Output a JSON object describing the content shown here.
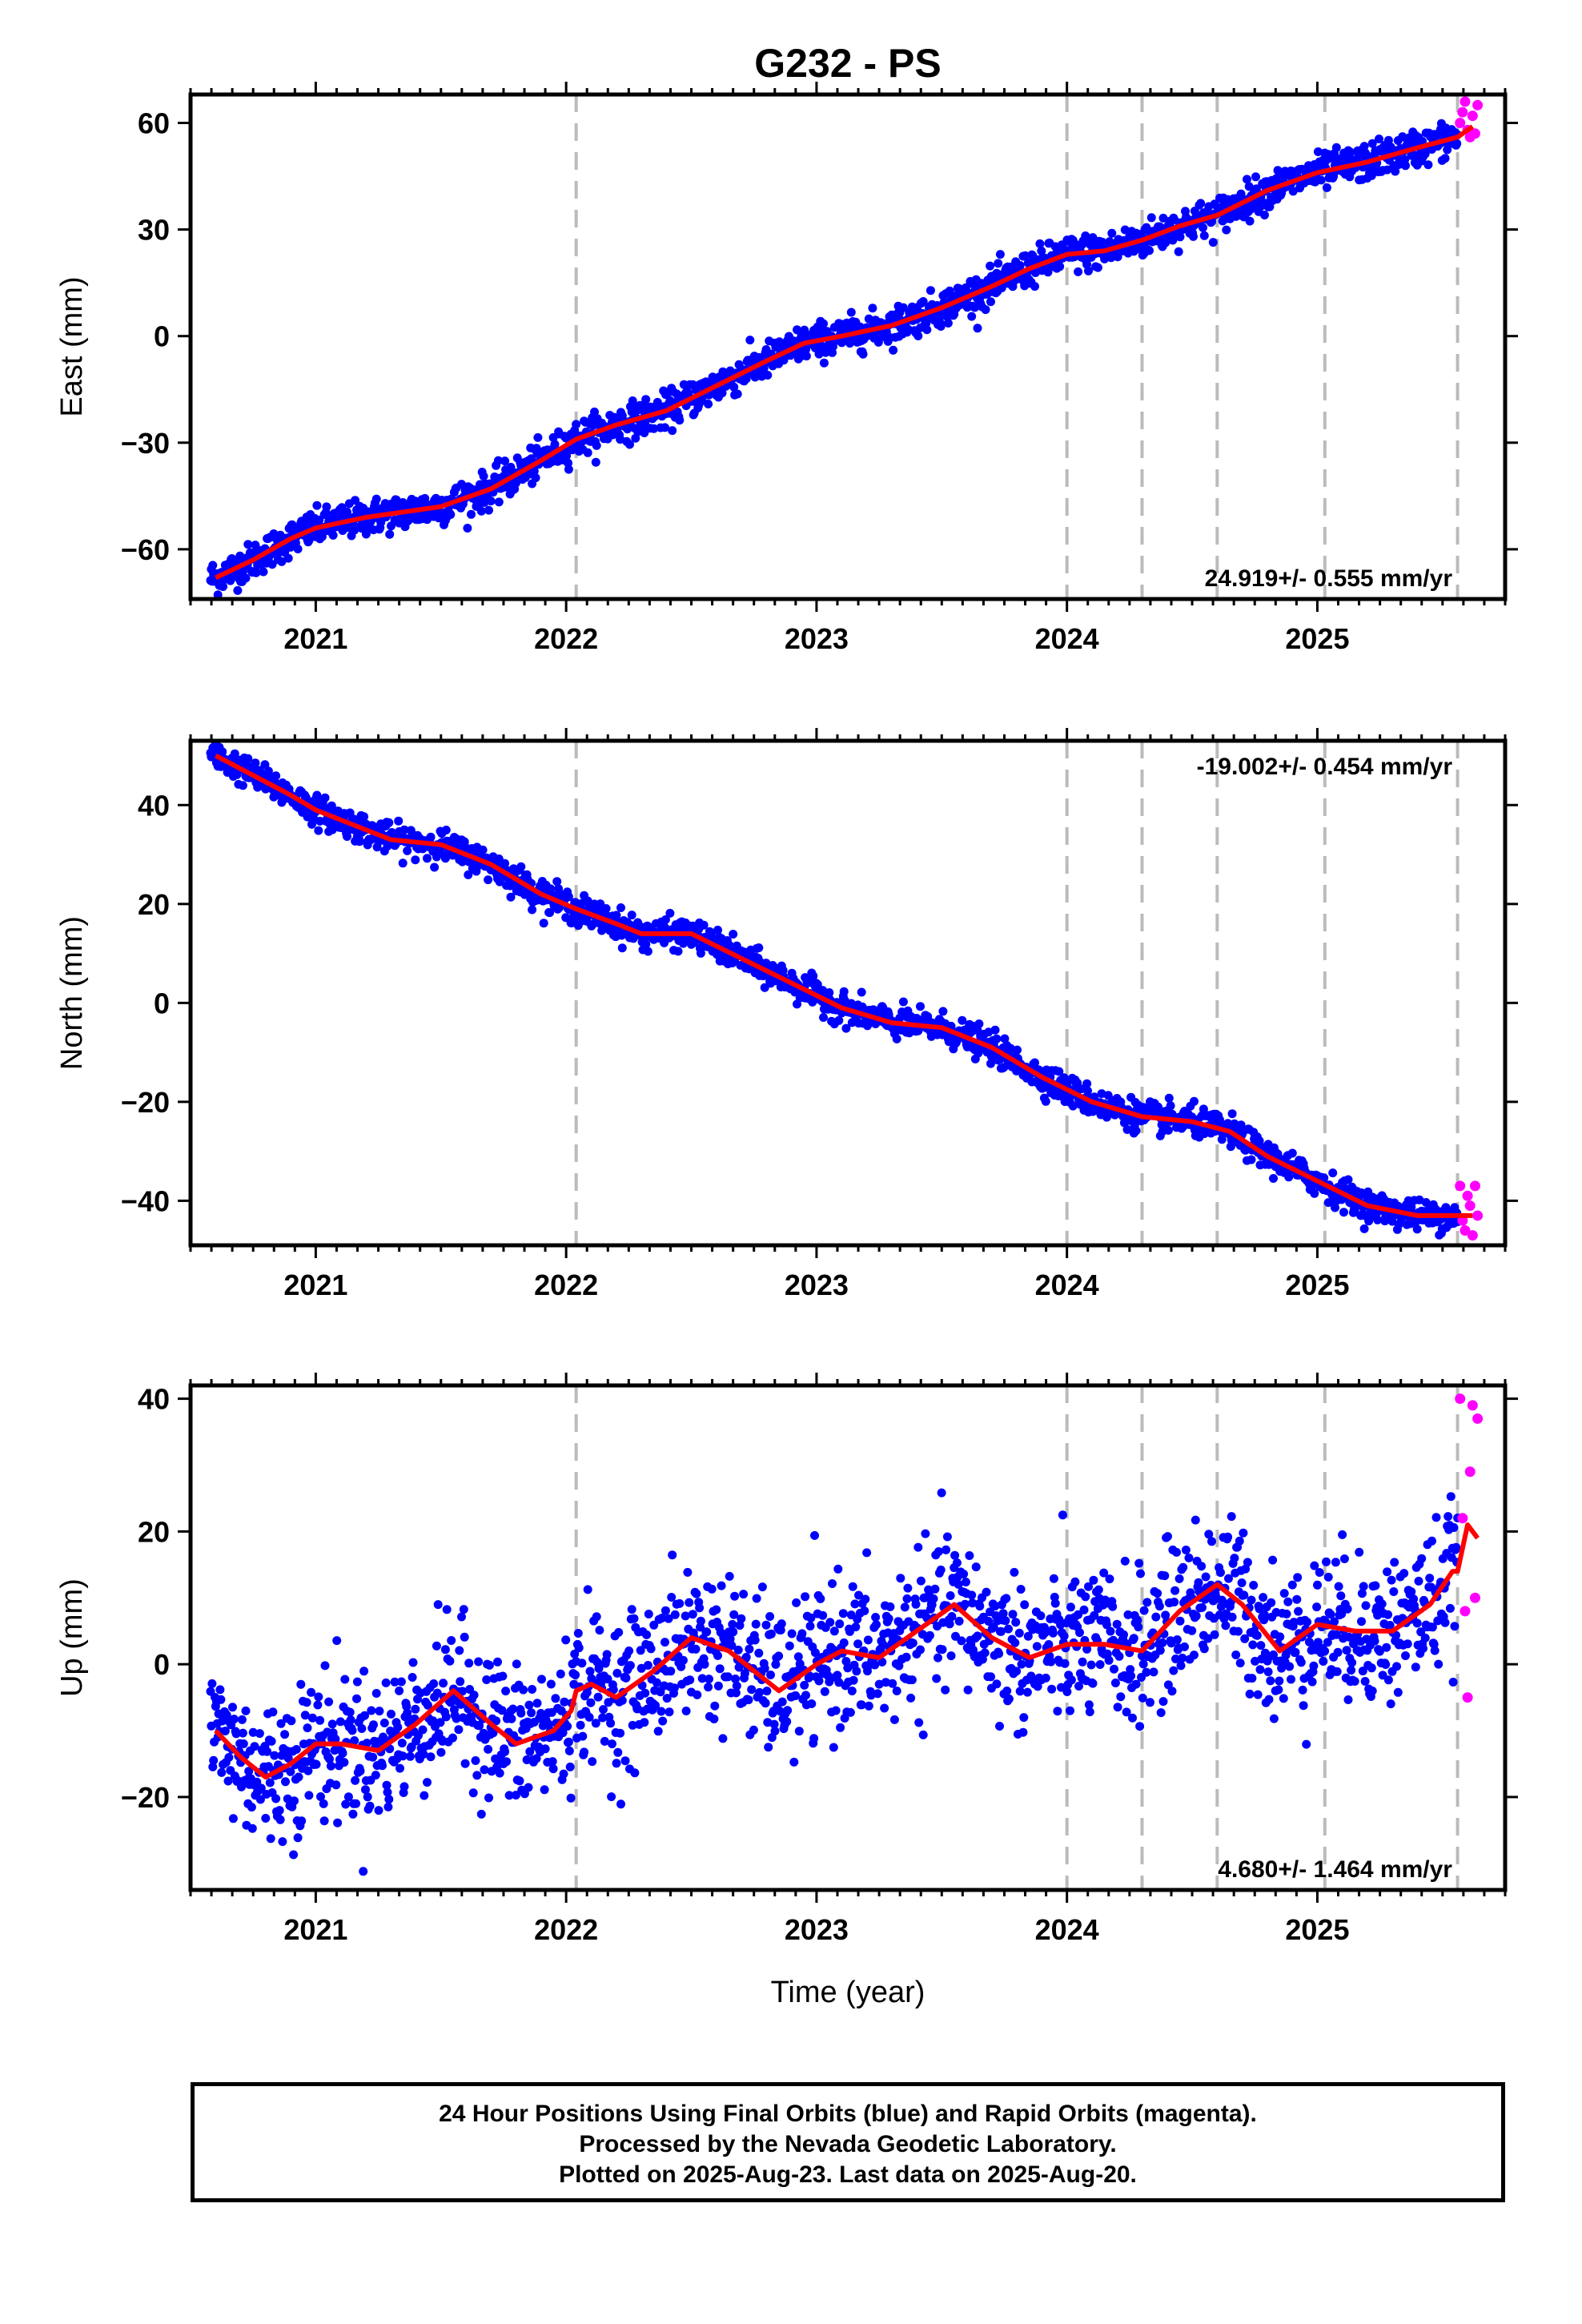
{
  "chart_data": {
    "type": "scatter",
    "title": "G232 - PS",
    "xlabel": "Time (year)",
    "xlim": [
      2020.5,
      2025.75
    ],
    "x_tick_labels": [
      "2021",
      "2022",
      "2023",
      "2024",
      "2025"
    ],
    "event_lines": [
      2022.04,
      2024.0,
      2024.3,
      2024.6,
      2025.03,
      2025.56
    ],
    "colors": {
      "final_orbits": "#0000ff",
      "rapid_orbits": "#ff00ff",
      "model": "#ff0000",
      "event_line": "#bbbbbb"
    },
    "panels": [
      {
        "name": "east",
        "ylabel": "East (mm)",
        "ylim": [
          -74,
          68
        ],
        "yticks": [
          60,
          30,
          0,
          -30,
          -60
        ],
        "ytick_labels": [
          "60",
          "30",
          "0",
          "−30",
          "−60"
        ],
        "rate_label": "24.919+/- 0.555 mm/yr",
        "rate_position": "bottom-right",
        "scatter_amplitude": 2.5,
        "series": [
          {
            "name": "Final Orbits",
            "color": "#0000ff",
            "x_range": [
              2020.58,
              2025.56
            ],
            "n": 1700
          },
          {
            "name": "Rapid Orbits",
            "color": "#ff00ff",
            "x": [
              2025.57,
              2025.58,
              2025.59,
              2025.6,
              2025.61,
              2025.62,
              2025.63,
              2025.64
            ],
            "y": [
              60,
              63,
              66,
              58,
              56,
              62,
              57,
              65
            ]
          },
          {
            "name": "Model",
            "color": "#ff0000",
            "x": [
              2020.6,
              2020.75,
              2020.9,
              2021.0,
              2021.2,
              2021.4,
              2021.5,
              2021.7,
              2021.9,
              2022.04,
              2022.2,
              2022.4,
              2022.6,
              2022.8,
              2022.95,
              2023.1,
              2023.3,
              2023.5,
              2023.7,
              2023.85,
              2024.0,
              2024.15,
              2024.3,
              2024.45,
              2024.6,
              2024.8,
              2025.0,
              2025.2,
              2025.4,
              2025.56,
              2025.62
            ],
            "y": [
              -68,
              -63,
              -57,
              -54,
              -51,
              -49,
              -48,
              -43,
              -35,
              -29,
              -25,
              -21,
              -14,
              -7,
              -2,
              0,
              3,
              8,
              14,
              19,
              23,
              24,
              27,
              31,
              34,
              41,
              46,
              49,
              53,
              56,
              59
            ]
          }
        ]
      },
      {
        "name": "north",
        "ylabel": "North (mm)",
        "ylim": [
          -49,
          53
        ],
        "yticks": [
          40,
          20,
          0,
          -20,
          -40
        ],
        "ytick_labels": [
          "40",
          "20",
          "0",
          "−20",
          "−40"
        ],
        "rate_label": "-19.002+/- 0.454 mm/yr",
        "rate_position": "top-right",
        "scatter_amplitude": 1.5,
        "series": [
          {
            "name": "Final Orbits",
            "color": "#0000ff",
            "x_range": [
              2020.58,
              2025.56
            ],
            "n": 1700
          },
          {
            "name": "Rapid Orbits",
            "color": "#ff00ff",
            "x": [
              2025.57,
              2025.58,
              2025.59,
              2025.6,
              2025.61,
              2025.62,
              2025.63,
              2025.64
            ],
            "y": [
              -37,
              -44,
              -46,
              -39,
              -41,
              -47,
              -37,
              -43
            ]
          },
          {
            "name": "Model",
            "color": "#ff0000",
            "x": [
              2020.6,
              2020.75,
              2020.9,
              2021.0,
              2021.15,
              2021.3,
              2021.5,
              2021.7,
              2021.9,
              2022.04,
              2022.2,
              2022.3,
              2022.5,
              2022.7,
              2022.9,
              2023.1,
              2023.3,
              2023.5,
              2023.7,
              2023.9,
              2024.1,
              2024.3,
              2024.5,
              2024.65,
              2024.8,
              2025.0,
              2025.2,
              2025.4,
              2025.56,
              2025.62
            ],
            "y": [
              50,
              46,
              42,
              39,
              36,
              33,
              32,
              28,
              22,
              19,
              16,
              14,
              14,
              9,
              4,
              -1,
              -4,
              -5,
              -9,
              -15,
              -20,
              -23,
              -24,
              -26,
              -31,
              -36,
              -41,
              -43,
              -43,
              -43
            ]
          }
        ]
      },
      {
        "name": "up",
        "ylabel": "Up (mm)",
        "ylim": [
          -34,
          42
        ],
        "yticks": [
          40,
          20,
          0,
          -20
        ],
        "ytick_labels": [
          "40",
          "20",
          "0",
          "−20"
        ],
        "rate_label": "4.680+/- 1.464 mm/yr",
        "rate_position": "bottom-right",
        "scatter_amplitude": 5.5,
        "series": [
          {
            "name": "Final Orbits",
            "color": "#0000ff",
            "x_range": [
              2020.58,
              2025.56
            ],
            "n": 1700
          },
          {
            "name": "Rapid Orbits",
            "color": "#ff00ff",
            "x": [
              2025.57,
              2025.58,
              2025.59,
              2025.6,
              2025.61,
              2025.62,
              2025.63,
              2025.64
            ],
            "y": [
              40,
              22,
              8,
              -5,
              29,
              39,
              10,
              37
            ]
          },
          {
            "name": "Model",
            "color": "#ff0000",
            "x": [
              2020.6,
              2020.7,
              2020.8,
              2020.9,
              2021.0,
              2021.1,
              2021.25,
              2021.4,
              2021.55,
              2021.7,
              2021.8,
              2021.95,
              2022.02,
              2022.04,
              2022.1,
              2022.2,
              2022.35,
              2022.5,
              2022.65,
              2022.85,
              2023.0,
              2023.1,
              2023.25,
              2023.4,
              2023.55,
              2023.7,
              2023.85,
              2024.0,
              2024.15,
              2024.3,
              2024.45,
              2024.6,
              2024.7,
              2024.85,
              2025.0,
              2025.15,
              2025.3,
              2025.45,
              2025.54,
              2025.56,
              2025.6,
              2025.64
            ],
            "y": [
              -10,
              -14,
              -17,
              -15,
              -12,
              -12,
              -13,
              -9,
              -4,
              -9,
              -12,
              -10,
              -7,
              -4,
              -3,
              -5,
              -1,
              4,
              2,
              -4,
              0,
              2,
              1,
              5,
              9,
              4,
              1,
              3,
              3,
              2,
              8,
              12,
              9,
              2,
              6,
              5,
              5,
              9,
              14,
              14,
              21,
              19
            ]
          }
        ]
      }
    ],
    "footer_lines": [
      "24 Hour Positions Using Final Orbits (blue) and Rapid Orbits (magenta).",
      "Processed by the Nevada Geodetic Laboratory.",
      "Plotted on 2025-Aug-23. Last data on 2025-Aug-20."
    ]
  }
}
